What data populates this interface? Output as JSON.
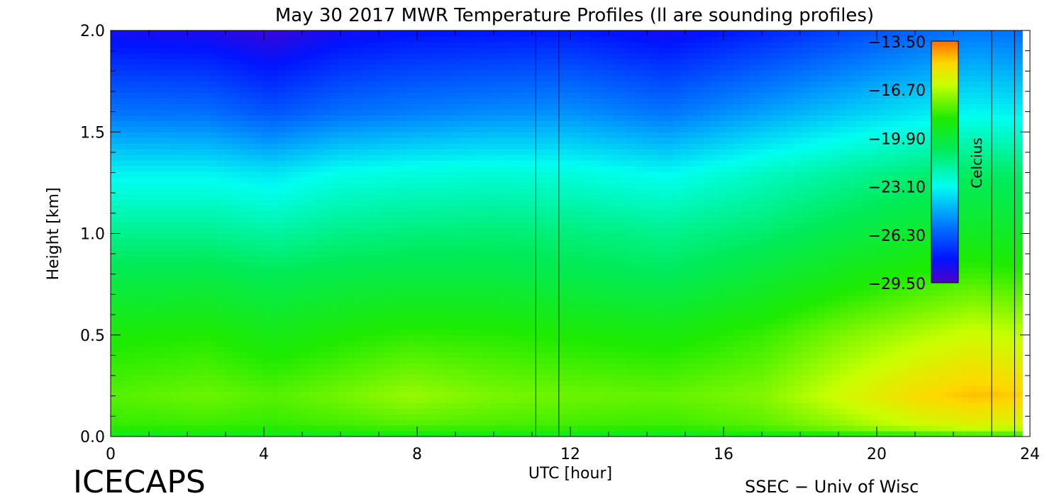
{
  "chart_data": {
    "type": "heatmap",
    "title": "May 30 2017 MWR Temperature Profiles (ll are sounding profiles)",
    "xlabel": "UTC [hour]",
    "ylabel": "Height [km]",
    "xlim": [
      0,
      24
    ],
    "ylim": [
      0,
      2
    ],
    "x_ticks": [
      "0",
      "4",
      "8",
      "12",
      "16",
      "20",
      "24"
    ],
    "y_ticks": [
      "0.0",
      "0.5",
      "1.0",
      "1.5",
      "2.0"
    ],
    "colorbar": {
      "label": "Celcius",
      "range": [
        -29.5,
        -13.5
      ],
      "ticks": [
        "−13.50",
        "−16.70",
        "−19.90",
        "−23.10",
        "−26.30",
        "−29.50"
      ]
    },
    "sounding_times": [
      11.1,
      11.7,
      23.0,
      23.6
    ],
    "data_end_hour": 23.8,
    "profile_nodes": {
      "heights_km": [
        0.0,
        0.05,
        0.2,
        0.5,
        0.8,
        1.0,
        1.3,
        1.6,
        2.0
      ],
      "columns": [
        {
          "time": 0.0,
          "temps": [
            -19.5,
            -18.4,
            -17.9,
            -18.8,
            -20.4,
            -21.5,
            -23.3,
            -25.8,
            -28.3
          ]
        },
        {
          "time": 2.5,
          "temps": [
            -19.5,
            -18.3,
            -17.6,
            -18.6,
            -20.3,
            -21.5,
            -23.3,
            -25.9,
            -28.5
          ]
        },
        {
          "time": 4.2,
          "temps": [
            -19.5,
            -18.4,
            -17.9,
            -19.1,
            -20.6,
            -21.8,
            -23.6,
            -26.5,
            -29.0
          ]
        },
        {
          "time": 6.0,
          "temps": [
            -19.5,
            -18.2,
            -17.5,
            -18.7,
            -20.3,
            -21.4,
            -23.0,
            -25.9,
            -28.3
          ]
        },
        {
          "time": 7.8,
          "temps": [
            -19.4,
            -18.0,
            -17.0,
            -18.4,
            -20.2,
            -21.2,
            -22.8,
            -25.6,
            -28.0
          ]
        },
        {
          "time": 10.0,
          "temps": [
            -19.5,
            -18.1,
            -17.4,
            -18.5,
            -20.2,
            -21.1,
            -22.7,
            -25.3,
            -27.9
          ]
        },
        {
          "time": 12.0,
          "temps": [
            -19.6,
            -18.2,
            -17.6,
            -18.7,
            -20.4,
            -21.2,
            -22.8,
            -25.2,
            -27.8
          ]
        },
        {
          "time": 14.5,
          "temps": [
            -19.7,
            -18.3,
            -17.7,
            -18.9,
            -20.7,
            -21.5,
            -23.2,
            -25.8,
            -28.3
          ]
        },
        {
          "time": 17.0,
          "temps": [
            -19.4,
            -17.9,
            -17.3,
            -18.3,
            -19.9,
            -21.0,
            -22.4,
            -24.9,
            -27.6
          ]
        },
        {
          "time": 19.0,
          "temps": [
            -19.0,
            -17.2,
            -16.2,
            -17.4,
            -19.2,
            -20.3,
            -21.8,
            -24.2,
            -26.9
          ]
        },
        {
          "time": 21.0,
          "temps": [
            -18.8,
            -16.4,
            -15.1,
            -16.7,
            -18.6,
            -19.7,
            -21.2,
            -23.6,
            -26.2
          ]
        },
        {
          "time": 22.5,
          "temps": [
            -18.6,
            -16.0,
            -14.6,
            -16.2,
            -18.2,
            -19.4,
            -20.8,
            -23.2,
            -25.7
          ]
        },
        {
          "time": 23.8,
          "temps": [
            -18.5,
            -16.2,
            -14.8,
            -16.5,
            -18.4,
            -19.6,
            -21.0,
            -23.4,
            -25.9
          ]
        }
      ]
    },
    "title_position": "top-center",
    "colorbar_position": "inside upper-right"
  },
  "footer": {
    "left": "ICECAPS",
    "right": "SSEC − Univ of Wisc"
  }
}
